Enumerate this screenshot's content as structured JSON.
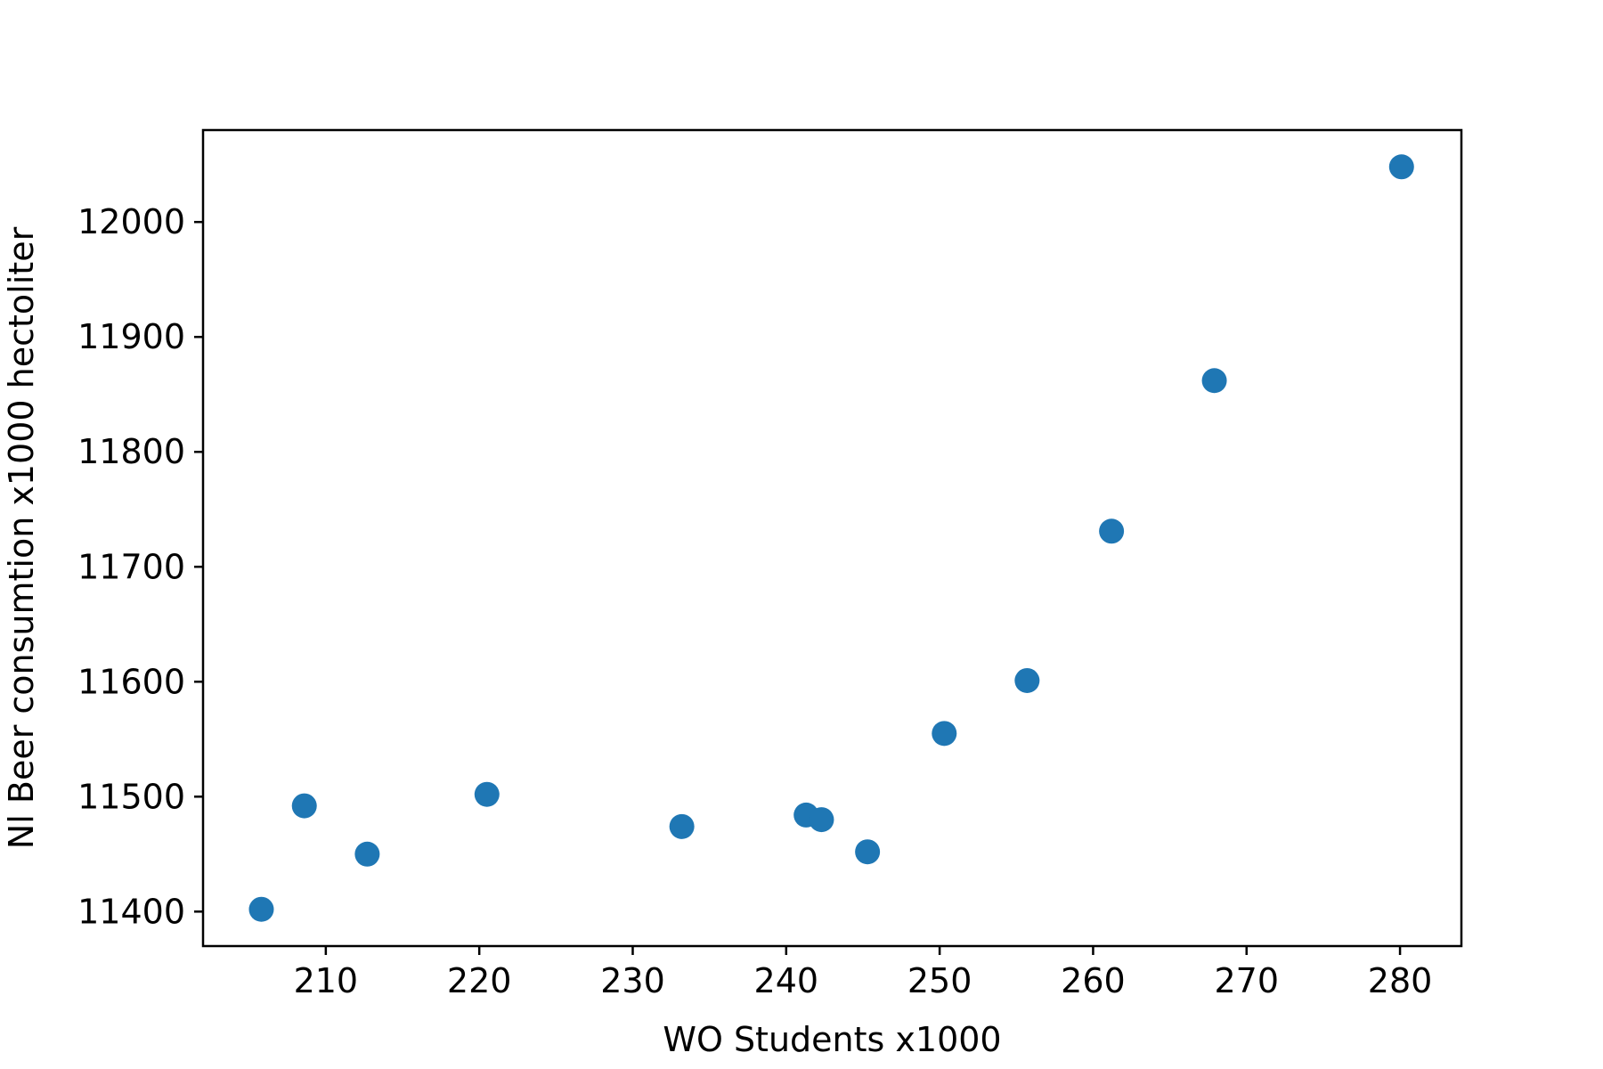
{
  "chart_data": {
    "type": "scatter",
    "title": "",
    "xlabel": "WO Students x1000",
    "ylabel": "Nl Beer consumtion x1000 hectoliter",
    "xlim": [
      202,
      284
    ],
    "ylim": [
      11370,
      12080
    ],
    "x_ticks": [
      210,
      220,
      230,
      240,
      250,
      260,
      270,
      280
    ],
    "y_ticks": [
      11400,
      11500,
      11600,
      11700,
      11800,
      11900,
      12000
    ],
    "grid": false,
    "legend": "none",
    "series": [
      {
        "color": "#1f77b4",
        "points": [
          {
            "x": 205.8,
            "y": 11402
          },
          {
            "x": 208.6,
            "y": 11492
          },
          {
            "x": 212.7,
            "y": 11450
          },
          {
            "x": 220.5,
            "y": 11502
          },
          {
            "x": 233.2,
            "y": 11474
          },
          {
            "x": 241.3,
            "y": 11484
          },
          {
            "x": 242.3,
            "y": 11480
          },
          {
            "x": 245.3,
            "y": 11452
          },
          {
            "x": 250.3,
            "y": 11555
          },
          {
            "x": 255.7,
            "y": 11601
          },
          {
            "x": 261.2,
            "y": 11731
          },
          {
            "x": 267.9,
            "y": 11862
          },
          {
            "x": 280.1,
            "y": 12048
          }
        ]
      }
    ]
  }
}
